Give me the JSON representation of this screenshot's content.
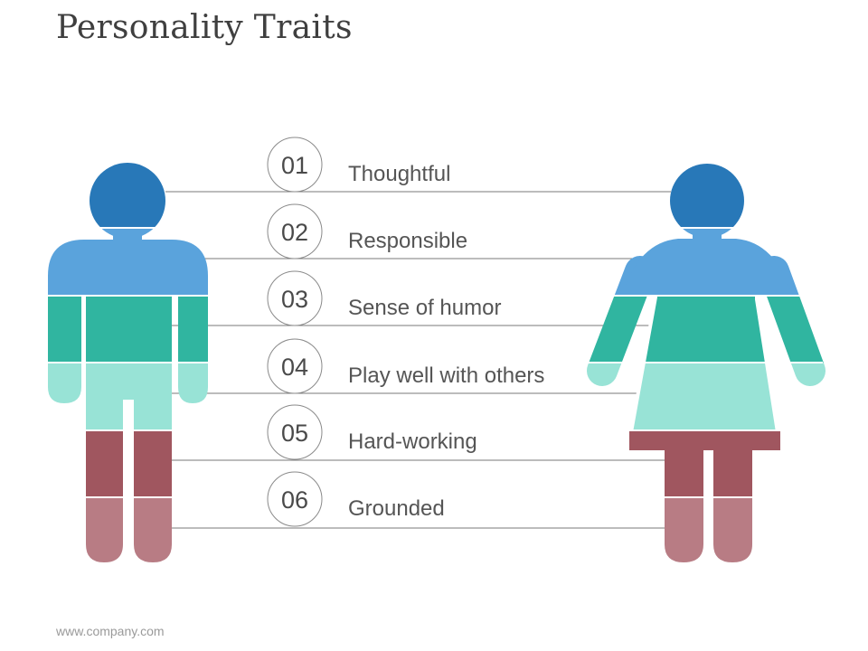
{
  "title": "Personality Traits",
  "footer": "www.company.com",
  "traits": [
    {
      "num": "01",
      "label": "Thoughtful",
      "color": "#2878b8"
    },
    {
      "num": "02",
      "label": "Responsible",
      "color": "#5aa3dc"
    },
    {
      "num": "03",
      "label": "Sense of humor",
      "color": "#30b5a0"
    },
    {
      "num": "04",
      "label": "Play well with others",
      "color": "#98e3d6"
    },
    {
      "num": "05",
      "label": "Hard-working",
      "color": "#a0565f"
    },
    {
      "num": "06",
      "label": "Grounded",
      "color": "#b87c84"
    }
  ],
  "figures": [
    "man-icon",
    "woman-icon"
  ]
}
